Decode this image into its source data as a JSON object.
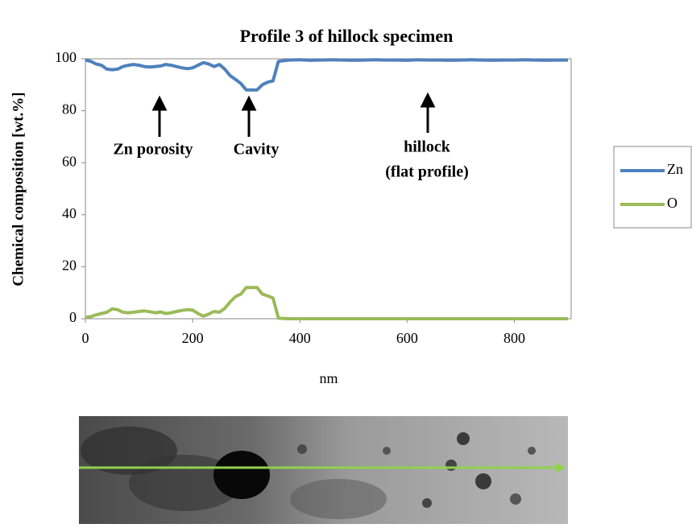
{
  "chart_data": {
    "type": "line",
    "title": "Profile 3 of hillock specimen",
    "x_label": "nm",
    "y_label": "Chemical composition [wt.%]",
    "annotations": [
      "Zn porosity",
      "Cavity",
      "hillock",
      "(flat profile)"
    ],
    "x": [
      0,
      10,
      20,
      30,
      40,
      50,
      60,
      70,
      80,
      90,
      100,
      110,
      120,
      130,
      140,
      150,
      160,
      170,
      180,
      190,
      200,
      210,
      220,
      230,
      240,
      250,
      260,
      270,
      280,
      290,
      300,
      310,
      320,
      330,
      340,
      350,
      360,
      380,
      400,
      420,
      440,
      460,
      480,
      500,
      520,
      540,
      560,
      580,
      600,
      620,
      640,
      660,
      680,
      700,
      720,
      740,
      760,
      780,
      800,
      820,
      840,
      860,
      880,
      900
    ],
    "series": [
      {
        "name": "Zn",
        "color": "#4f81bd",
        "values": [
          99.5,
          99,
          98,
          97.5,
          96,
          95.8,
          96,
          97,
          97.5,
          97.8,
          97.5,
          97,
          96.8,
          97,
          97.2,
          97.8,
          97.5,
          97,
          96.5,
          96.2,
          96.5,
          97.5,
          98.5,
          98,
          97,
          97.8,
          96,
          93.5,
          92,
          90.5,
          88,
          88,
          88,
          90,
          91,
          91.5,
          99,
          99.5,
          99.6,
          99.4,
          99.5,
          99.6,
          99.5,
          99.4,
          99.5,
          99.6,
          99.5,
          99.5,
          99.4,
          99.6,
          99.5,
          99.5,
          99.4,
          99.5,
          99.6,
          99.5,
          99.4,
          99.5,
          99.5,
          99.6,
          99.5,
          99.4,
          99.5,
          99.5
        ]
      },
      {
        "name": "O",
        "color": "#9bbb59",
        "values": [
          0.5,
          0.8,
          1.5,
          2,
          2.5,
          3.8,
          3.5,
          2.5,
          2.3,
          2.5,
          2.8,
          3,
          2.7,
          2.3,
          2.6,
          2,
          2.3,
          2.8,
          3.2,
          3.5,
          3.3,
          2,
          1,
          1.8,
          2.8,
          2.5,
          4,
          6.5,
          8.5,
          9.5,
          12,
          12,
          12,
          9.5,
          8.8,
          8,
          0.2,
          0,
          0,
          0,
          0,
          0,
          0,
          0,
          0,
          0,
          0,
          0,
          0,
          0,
          0,
          0,
          0,
          0,
          0,
          0,
          0,
          0,
          0,
          0,
          0,
          0,
          0,
          0
        ]
      }
    ],
    "xlim": [
      0,
      906
    ],
    "xticks": [
      0,
      200,
      400,
      600,
      800
    ],
    "ylim": [
      0,
      100
    ],
    "yticks": [
      0,
      20,
      40,
      60,
      80,
      100
    ],
    "legend": "right"
  }
}
